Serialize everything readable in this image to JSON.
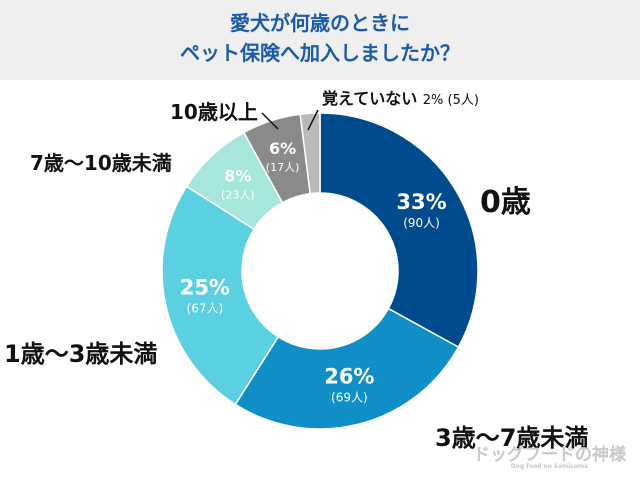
{
  "header": {
    "line1": "愛犬が何歳のときに",
    "line2": "ペット保険へ加入しましたか？"
  },
  "chart_data": {
    "type": "pie",
    "donut": true,
    "categories": [
      "0歳",
      "3歳〜7歳未満",
      "1歳〜3歳未満",
      "7歳〜10歳未満",
      "10歳以上",
      "覚えていない"
    ],
    "values": [
      33,
      26,
      25,
      8,
      6,
      2
    ],
    "counts": [
      "(90人)",
      "(69人)",
      "(67人)",
      "(23人)",
      "(17人)",
      "(5人)"
    ],
    "percent_labels": [
      "33%",
      "26%",
      "25%",
      "8%",
      "6%",
      "2%"
    ],
    "colors": [
      "#004b8d",
      "#0f8fc6",
      "#5ad0e0",
      "#a6e6dc",
      "#8a8a8a",
      "#b9b9b9"
    ],
    "outside_labels": [
      "0歳",
      "3歳〜7歳未満",
      "1歳〜3歳未満",
      "7歳〜10歳未満",
      "10歳以上",
      "覚えていない 2% (5人)"
    ]
  },
  "watermark": {
    "main": "ドッグフードの神様",
    "sub": "Dog food no kamisama"
  }
}
